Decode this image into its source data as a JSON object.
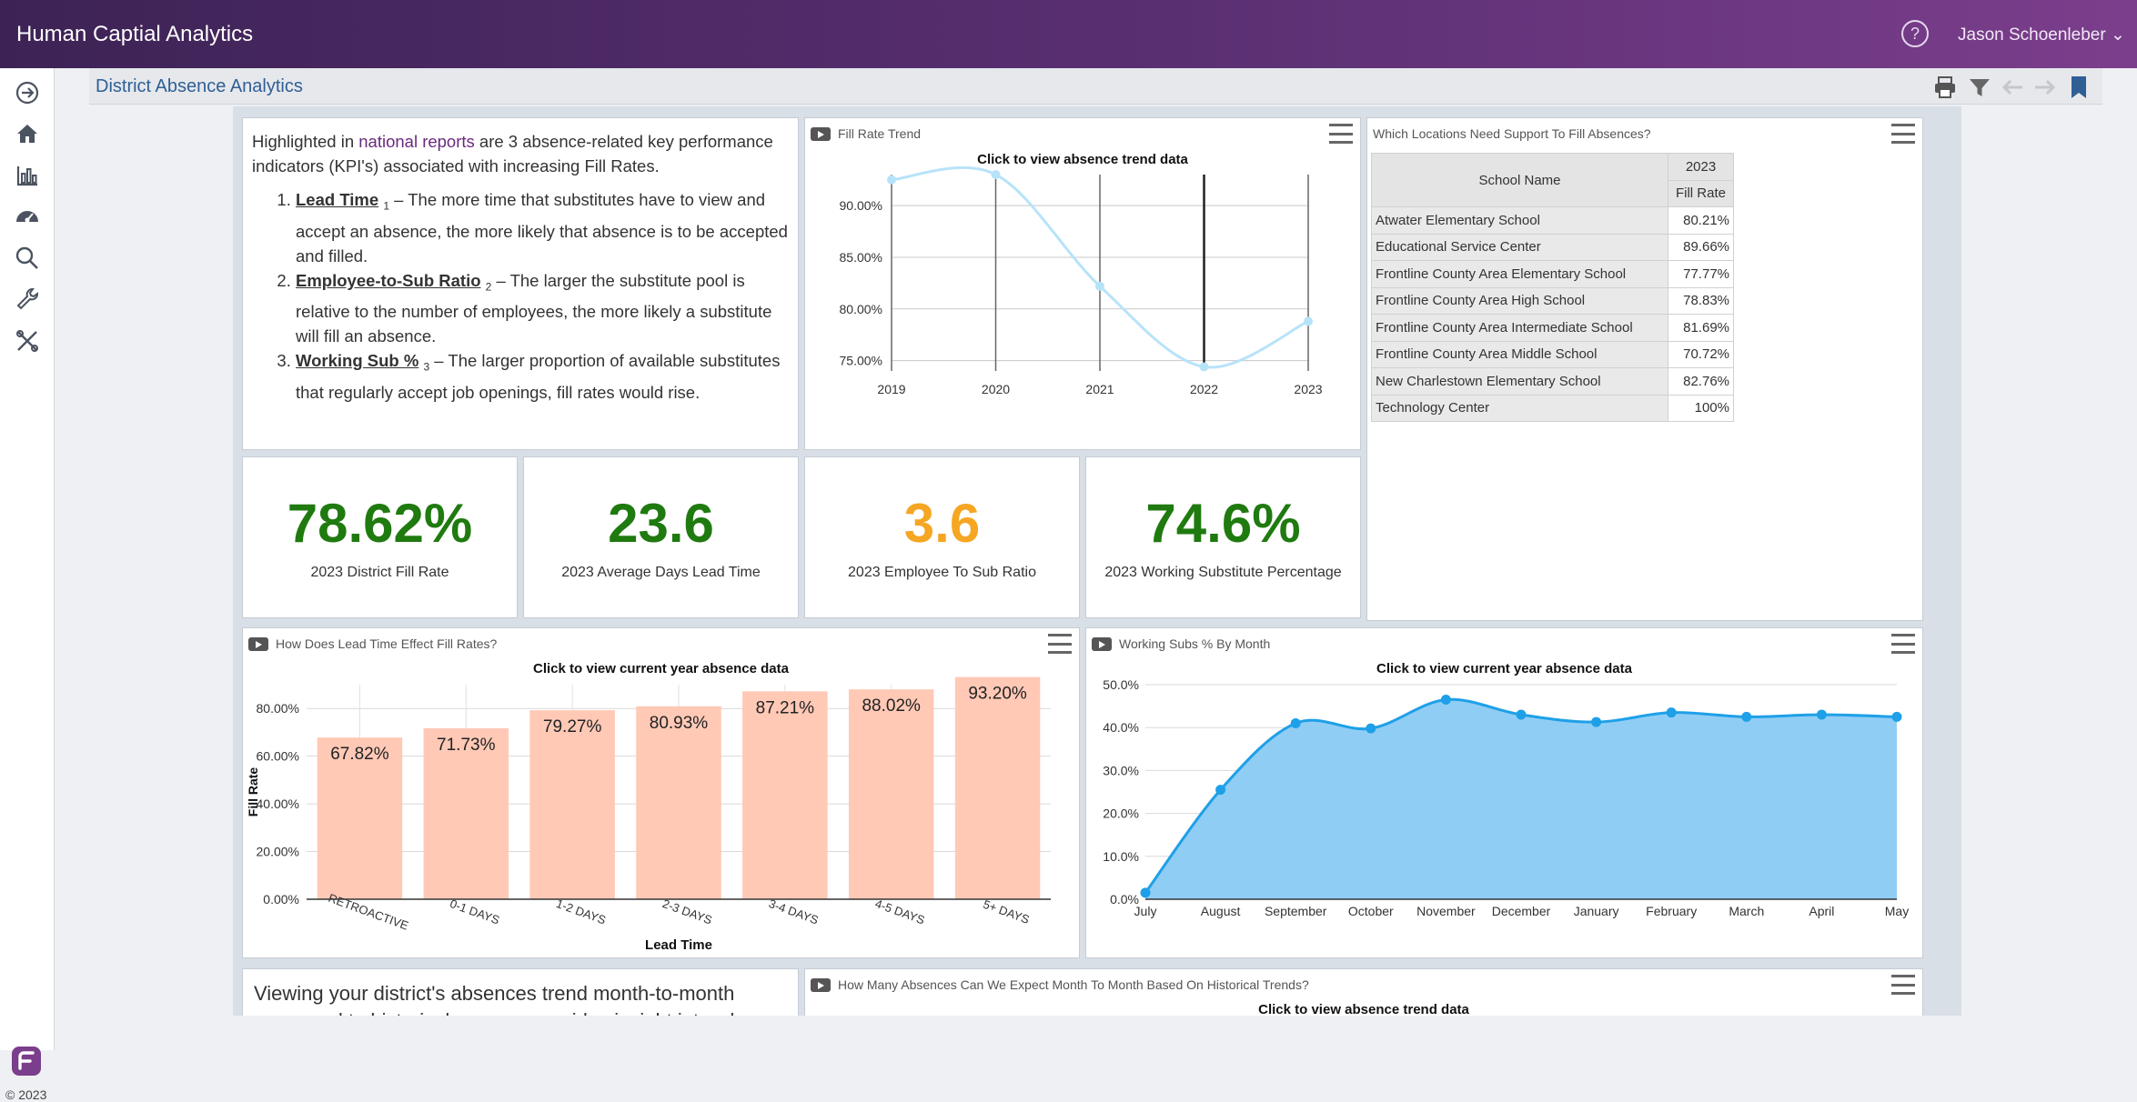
{
  "app": {
    "title": "Human Captial Analytics",
    "user": "Jason Schoenleber",
    "help_icon": "help-icon",
    "copyright": "© 2023"
  },
  "page": {
    "title": "District Absence Analytics"
  },
  "colors": {
    "header_start": "#3d2355",
    "header_end": "#7b3e8c",
    "kpi_green": "#1f7a0f",
    "kpi_orange": "#f5a623",
    "bar_fill": "#ffc9b6",
    "area_fill": "#90cdf4",
    "line": "#1ea0e8"
  },
  "intro": {
    "p1_a": "Highlighted in ",
    "p1_link": "national reports",
    "p1_b": " are 3 absence-related key performance indicators (KPI's) associated with increasing Fill Rates.",
    "items": [
      {
        "term": "Lead Time",
        "sup": "1",
        "text": " – The more time that substitutes have to view and accept an absence, the more likely that absence is to be accepted and filled."
      },
      {
        "term": "Employee-to-Sub Ratio",
        "sup": "2",
        "text": " – The larger the substitute pool is relative to the number of employees, the more likely a substitute will fill an absence."
      },
      {
        "term": "Working Sub %",
        "sup": "3",
        "text": " – The larger proportion of available substitutes that regularly accept job openings, fill rates would rise."
      }
    ]
  },
  "intro2": {
    "text": "Viewing your district's absences trend month-to-month compared to historical average provides insight into when"
  },
  "kpis": [
    {
      "value": "78.62%",
      "label": "2023 District Fill Rate",
      "color": "#1f7a0f"
    },
    {
      "value": "23.6",
      "label": "2023 Average Days Lead Time",
      "color": "#1f7a0f"
    },
    {
      "value": "3.6",
      "label": "2023 Employee To Sub Ratio",
      "color": "#f5a623"
    },
    {
      "value": "74.6%",
      "label": "2023 Working Substitute Percentage",
      "color": "#1f7a0f"
    }
  ],
  "fill_panel": {
    "title": "Fill Rate Trend",
    "subtitle": "Click to view absence trend data"
  },
  "lead_panel": {
    "title": "How Does Lead Time Effect Fill Rates?",
    "subtitle": "Click to view current year absence data"
  },
  "sub_panel": {
    "title": "Working Subs % By Month",
    "subtitle": "Click to view current year absence data"
  },
  "expect_panel": {
    "title": "How Many Absences Can We Expect Month To Month Based On Historical Trends?",
    "subtitle": "Click to view absence trend data"
  },
  "locations": {
    "title": "Which Locations Need Support To Fill Absences?",
    "col_name": "School Name",
    "col_year": "2023",
    "col_rate": "Fill Rate",
    "rows": [
      {
        "name": "Atwater Elementary School",
        "rate": "80.21%"
      },
      {
        "name": "Educational Service Center",
        "rate": "89.66%"
      },
      {
        "name": "Frontline County Area Elementary School",
        "rate": "77.77%"
      },
      {
        "name": "Frontline County Area High School",
        "rate": "78.83%"
      },
      {
        "name": "Frontline County Area Intermediate School",
        "rate": "81.69%"
      },
      {
        "name": "Frontline County Area Middle School",
        "rate": "70.72%"
      },
      {
        "name": "New Charlestown Elementary School",
        "rate": "82.76%"
      },
      {
        "name": "Technology Center",
        "rate": "100%"
      }
    ]
  },
  "chart_data": [
    {
      "type": "line",
      "title": "Click to view absence trend data",
      "x": [
        2019,
        2020,
        2021,
        2022,
        2023
      ],
      "series": [
        {
          "values": [
            92.5,
            93.0,
            82.2,
            74.4,
            78.8
          ]
        }
      ],
      "ylim": [
        74,
        93
      ],
      "yticks": [
        "75.00%",
        "80.00%",
        "85.00%",
        "90.00%"
      ],
      "grid": true
    },
    {
      "type": "bar",
      "title": "Click to view current year absence data",
      "categories": [
        "RETROACTIVE",
        "0-1 DAYS",
        "1-2 DAYS",
        "2-3 DAYS",
        "3-4 DAYS",
        "4-5 DAYS",
        "5+ DAYS"
      ],
      "values": [
        67.82,
        71.73,
        79.27,
        80.93,
        87.21,
        88.02,
        93.2
      ],
      "labels": [
        "67.82%",
        "71.73%",
        "79.27%",
        "80.93%",
        "87.21%",
        "88.02%",
        "93.20%"
      ],
      "xlabel": "Lead Time",
      "ylabel": "Fill Rate",
      "ylim": [
        0,
        90
      ],
      "yticks": [
        "0.00%",
        "20.00%",
        "40.00%",
        "60.00%",
        "80.00%"
      ],
      "grid": true
    },
    {
      "type": "area",
      "title": "Click to view current year absence data",
      "categories": [
        "July",
        "August",
        "September",
        "October",
        "November",
        "December",
        "January",
        "February",
        "March",
        "April",
        "May"
      ],
      "values": [
        1.5,
        25.5,
        41.0,
        39.8,
        46.5,
        43.0,
        41.3,
        43.5,
        42.5,
        43.0,
        42.5
      ],
      "ylim": [
        0,
        50
      ],
      "yticks": [
        "0.0%",
        "10.0%",
        "20.0%",
        "30.0%",
        "40.0%",
        "50.0%"
      ],
      "grid": true
    }
  ]
}
